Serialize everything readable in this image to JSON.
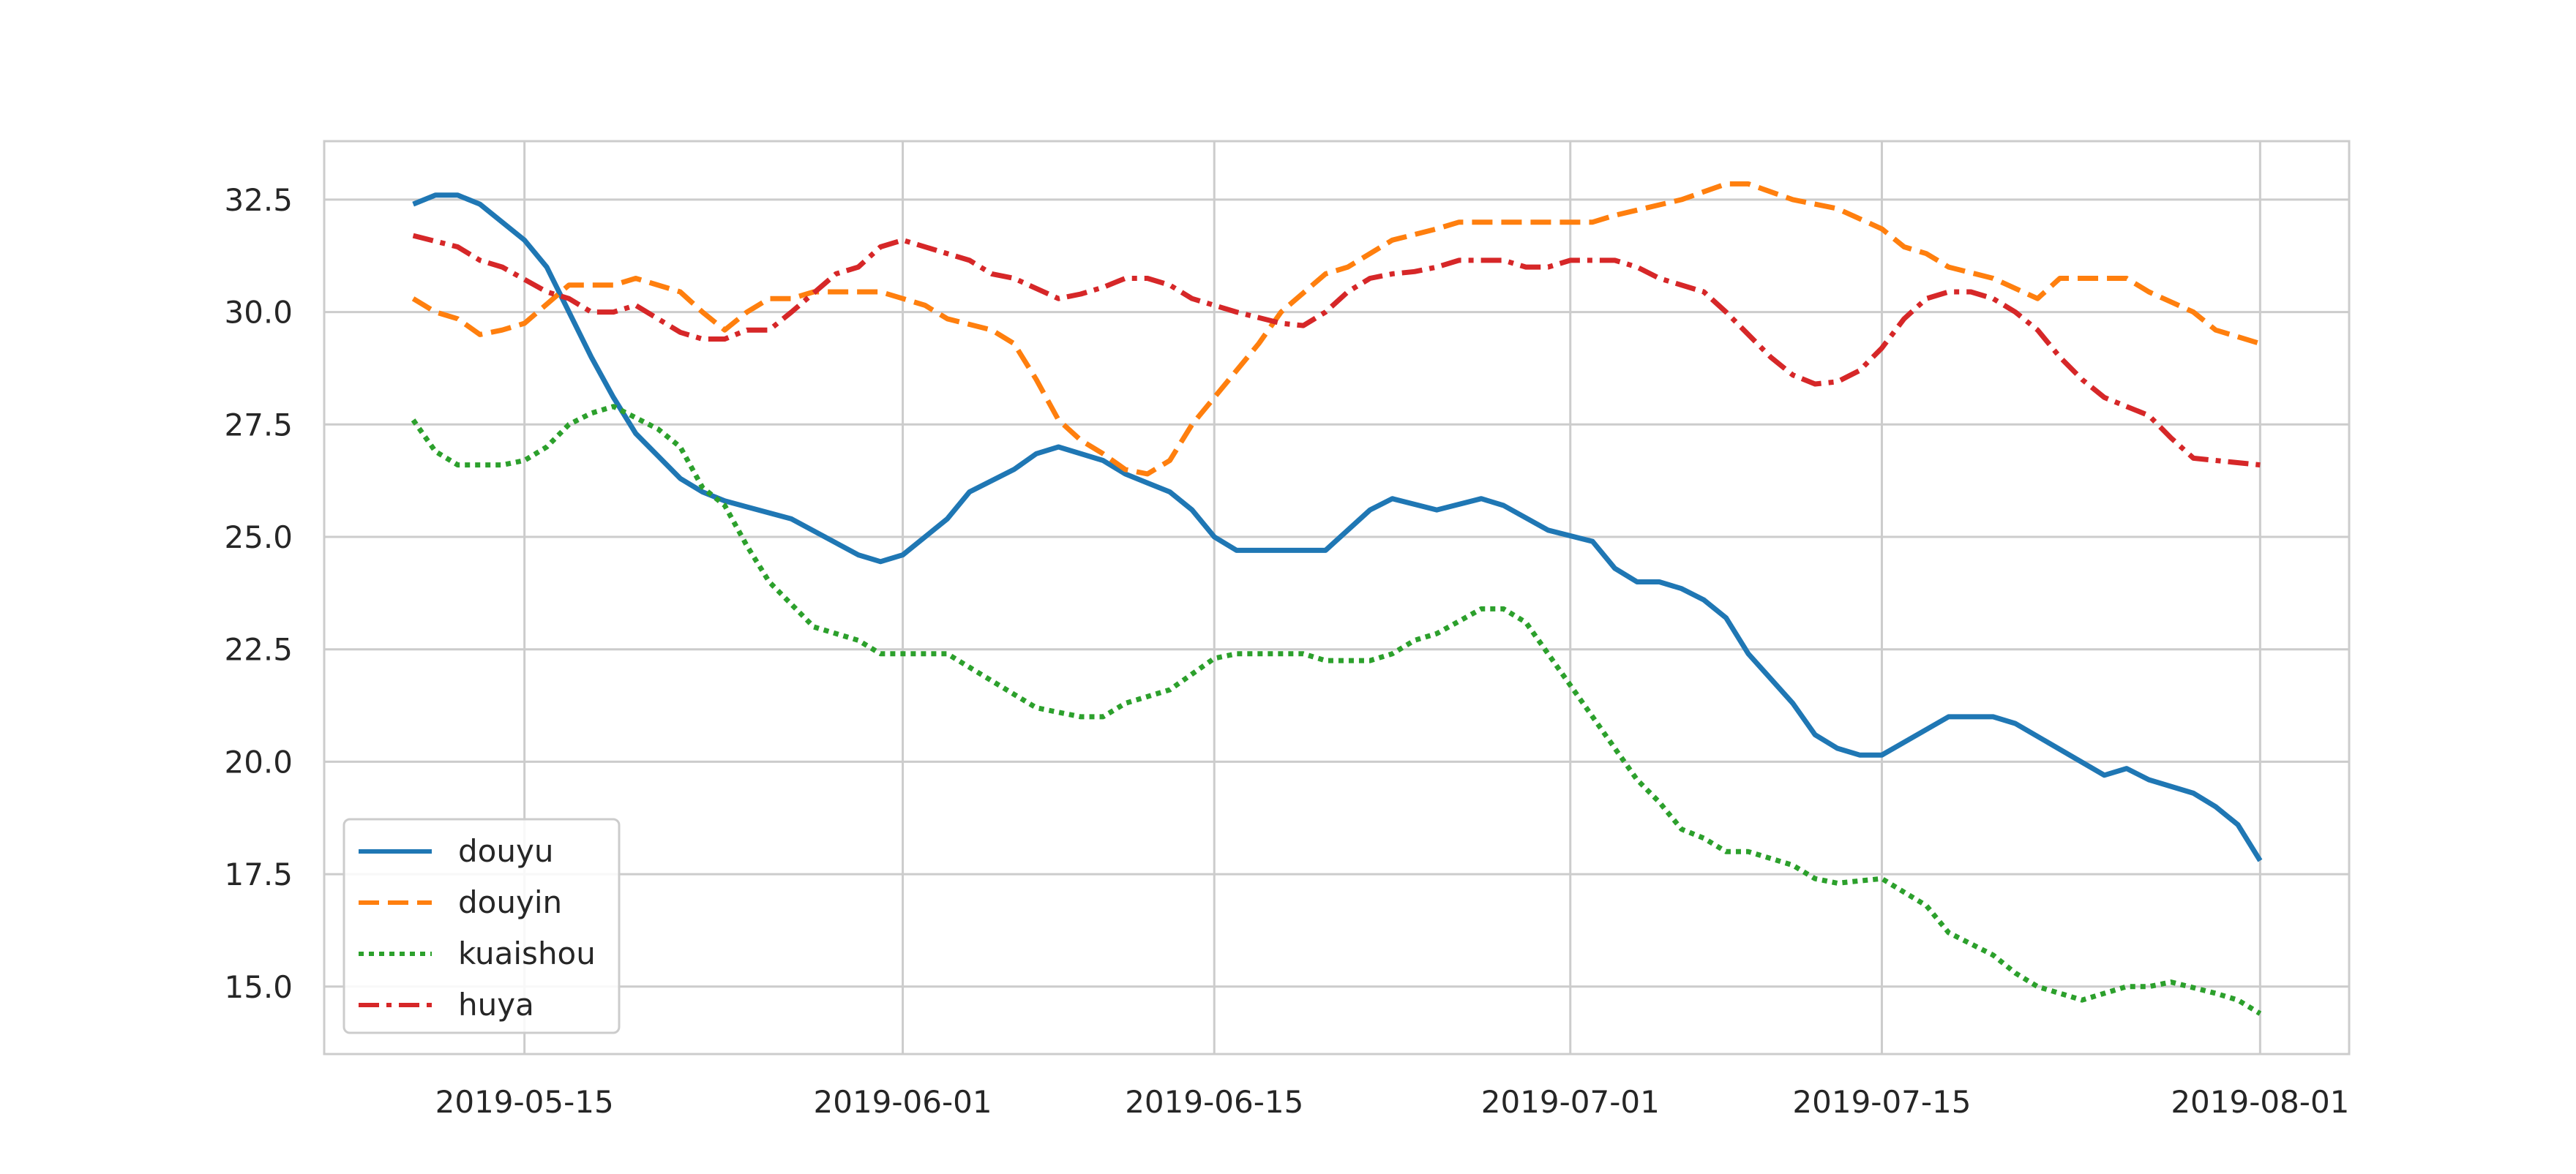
{
  "chart_data": {
    "type": "line",
    "title": "",
    "xlabel": "",
    "ylabel": "",
    "x_axis": {
      "type": "date",
      "range": [
        "2019-05-06",
        "2019-08-05"
      ],
      "ticks": [
        "2019-05-15",
        "2019-06-01",
        "2019-06-15",
        "2019-07-01",
        "2019-07-15",
        "2019-08-01"
      ]
    },
    "y_axis": {
      "range": [
        13.5,
        33.8
      ],
      "ticks": [
        "15.0",
        "17.5",
        "20.0",
        "22.5",
        "25.0",
        "27.5",
        "30.0",
        "32.5"
      ]
    },
    "grid": true,
    "legend": {
      "placement": "lower-left"
    },
    "series": [
      {
        "name": "douyu",
        "color": "#1f77b4",
        "style": "solid",
        "points": [
          [
            "2019-05-10",
            32.4
          ],
          [
            "2019-05-11",
            32.6
          ],
          [
            "2019-05-12",
            32.6
          ],
          [
            "2019-05-13",
            32.4
          ],
          [
            "2019-05-15",
            31.6
          ],
          [
            "2019-05-16",
            31.0
          ],
          [
            "2019-05-17",
            30.0
          ],
          [
            "2019-05-18",
            29.0
          ],
          [
            "2019-05-19",
            28.1
          ],
          [
            "2019-05-20",
            27.3
          ],
          [
            "2019-05-21",
            26.8
          ],
          [
            "2019-05-22",
            26.3
          ],
          [
            "2019-05-23",
            26.0
          ],
          [
            "2019-05-24",
            25.8
          ],
          [
            "2019-05-27",
            25.4
          ],
          [
            "2019-05-30",
            24.6
          ],
          [
            "2019-05-31",
            24.45
          ],
          [
            "2019-06-01",
            24.6
          ],
          [
            "2019-06-03",
            25.4
          ],
          [
            "2019-06-04",
            26.0
          ],
          [
            "2019-06-06",
            26.5
          ],
          [
            "2019-06-07",
            26.85
          ],
          [
            "2019-06-08",
            27.0
          ],
          [
            "2019-06-10",
            26.7
          ],
          [
            "2019-06-11",
            26.4
          ],
          [
            "2019-06-12",
            26.2
          ],
          [
            "2019-06-13",
            26.0
          ],
          [
            "2019-06-14",
            25.6
          ],
          [
            "2019-06-15",
            25.0
          ],
          [
            "2019-06-16",
            24.7
          ],
          [
            "2019-06-20",
            24.7
          ],
          [
            "2019-06-22",
            25.6
          ],
          [
            "2019-06-23",
            25.85
          ],
          [
            "2019-06-25",
            25.6
          ],
          [
            "2019-06-27",
            25.85
          ],
          [
            "2019-06-28",
            25.7
          ],
          [
            "2019-06-30",
            25.15
          ],
          [
            "2019-07-02",
            24.9
          ],
          [
            "2019-07-03",
            24.3
          ],
          [
            "2019-07-04",
            24.0
          ],
          [
            "2019-07-05",
            24.0
          ],
          [
            "2019-07-06",
            23.85
          ],
          [
            "2019-07-07",
            23.6
          ],
          [
            "2019-07-08",
            23.2
          ],
          [
            "2019-07-09",
            22.4
          ],
          [
            "2019-07-11",
            21.3
          ],
          [
            "2019-07-12",
            20.6
          ],
          [
            "2019-07-13",
            20.3
          ],
          [
            "2019-07-14",
            20.15
          ],
          [
            "2019-07-15",
            20.15
          ],
          [
            "2019-07-18",
            21.0
          ],
          [
            "2019-07-20",
            21.0
          ],
          [
            "2019-07-21",
            20.85
          ],
          [
            "2019-07-25",
            19.7
          ],
          [
            "2019-07-26",
            19.85
          ],
          [
            "2019-07-27",
            19.6
          ],
          [
            "2019-07-29",
            19.3
          ],
          [
            "2019-07-30",
            19.0
          ],
          [
            "2019-07-31",
            18.6
          ],
          [
            "2019-08-01",
            17.8
          ]
        ]
      },
      {
        "name": "douyin",
        "color": "#ff7f0e",
        "style": "dashed",
        "points": [
          [
            "2019-05-10",
            30.3
          ],
          [
            "2019-05-11",
            30.0
          ],
          [
            "2019-05-12",
            29.85
          ],
          [
            "2019-05-13",
            29.5
          ],
          [
            "2019-05-14",
            29.6
          ],
          [
            "2019-05-15",
            29.75
          ],
          [
            "2019-05-17",
            30.6
          ],
          [
            "2019-05-19",
            30.6
          ],
          [
            "2019-05-20",
            30.75
          ],
          [
            "2019-05-22",
            30.45
          ],
          [
            "2019-05-23",
            30.0
          ],
          [
            "2019-05-24",
            29.6
          ],
          [
            "2019-05-25",
            30.0
          ],
          [
            "2019-05-26",
            30.3
          ],
          [
            "2019-05-27",
            30.3
          ],
          [
            "2019-05-28",
            30.45
          ],
          [
            "2019-05-31",
            30.45
          ],
          [
            "2019-06-01",
            30.3
          ],
          [
            "2019-06-02",
            30.15
          ],
          [
            "2019-06-03",
            29.85
          ],
          [
            "2019-06-05",
            29.6
          ],
          [
            "2019-06-06",
            29.3
          ],
          [
            "2019-06-07",
            28.5
          ],
          [
            "2019-06-08",
            27.6
          ],
          [
            "2019-06-09",
            27.15
          ],
          [
            "2019-06-10",
            26.85
          ],
          [
            "2019-06-11",
            26.5
          ],
          [
            "2019-06-12",
            26.4
          ],
          [
            "2019-06-13",
            26.7
          ],
          [
            "2019-06-14",
            27.5
          ],
          [
            "2019-06-16",
            28.7
          ],
          [
            "2019-06-17",
            29.3
          ],
          [
            "2019-06-18",
            30.0
          ],
          [
            "2019-06-20",
            30.85
          ],
          [
            "2019-06-21",
            31.0
          ],
          [
            "2019-06-23",
            31.6
          ],
          [
            "2019-06-25",
            31.85
          ],
          [
            "2019-06-26",
            32.0
          ],
          [
            "2019-07-02",
            32.0
          ],
          [
            "2019-07-03",
            32.15
          ],
          [
            "2019-07-06",
            32.5
          ],
          [
            "2019-07-08",
            32.85
          ],
          [
            "2019-07-09",
            32.85
          ],
          [
            "2019-07-11",
            32.5
          ],
          [
            "2019-07-13",
            32.3
          ],
          [
            "2019-07-15",
            31.85
          ],
          [
            "2019-07-16",
            31.45
          ],
          [
            "2019-07-17",
            31.3
          ],
          [
            "2019-07-18",
            31.0
          ],
          [
            "2019-07-20",
            30.75
          ],
          [
            "2019-07-22",
            30.3
          ],
          [
            "2019-07-23",
            30.75
          ],
          [
            "2019-07-26",
            30.75
          ],
          [
            "2019-07-27",
            30.45
          ],
          [
            "2019-07-29",
            30.0
          ],
          [
            "2019-07-30",
            29.6
          ],
          [
            "2019-08-01",
            29.3
          ]
        ]
      },
      {
        "name": "kuaishou",
        "color": "#2ca02c",
        "style": "dotted",
        "points": [
          [
            "2019-05-10",
            27.6
          ],
          [
            "2019-05-11",
            26.9
          ],
          [
            "2019-05-12",
            26.6
          ],
          [
            "2019-05-14",
            26.6
          ],
          [
            "2019-05-15",
            26.7
          ],
          [
            "2019-05-16",
            27.0
          ],
          [
            "2019-05-17",
            27.5
          ],
          [
            "2019-05-18",
            27.75
          ],
          [
            "2019-05-19",
            27.9
          ],
          [
            "2019-05-21",
            27.4
          ],
          [
            "2019-05-22",
            27.0
          ],
          [
            "2019-05-23",
            26.1
          ],
          [
            "2019-05-24",
            25.7
          ],
          [
            "2019-05-25",
            24.8
          ],
          [
            "2019-05-26",
            24.0
          ],
          [
            "2019-05-27",
            23.5
          ],
          [
            "2019-05-28",
            23.0
          ],
          [
            "2019-05-30",
            22.7
          ],
          [
            "2019-05-31",
            22.4
          ],
          [
            "2019-06-03",
            22.4
          ],
          [
            "2019-06-04",
            22.1
          ],
          [
            "2019-06-06",
            21.5
          ],
          [
            "2019-06-07",
            21.2
          ],
          [
            "2019-06-09",
            21.0
          ],
          [
            "2019-06-10",
            21.0
          ],
          [
            "2019-06-11",
            21.3
          ],
          [
            "2019-06-13",
            21.6
          ],
          [
            "2019-06-15",
            22.3
          ],
          [
            "2019-06-16",
            22.4
          ],
          [
            "2019-06-19",
            22.4
          ],
          [
            "2019-06-20",
            22.25
          ],
          [
            "2019-06-22",
            22.25
          ],
          [
            "2019-06-23",
            22.4
          ],
          [
            "2019-06-24",
            22.7
          ],
          [
            "2019-06-25",
            22.85
          ],
          [
            "2019-06-27",
            23.4
          ],
          [
            "2019-06-28",
            23.4
          ],
          [
            "2019-06-29",
            23.1
          ],
          [
            "2019-06-30",
            22.4
          ],
          [
            "2019-07-02",
            21.0
          ],
          [
            "2019-07-03",
            20.3
          ],
          [
            "2019-07-04",
            19.6
          ],
          [
            "2019-07-05",
            19.1
          ],
          [
            "2019-07-06",
            18.5
          ],
          [
            "2019-07-07",
            18.3
          ],
          [
            "2019-07-08",
            18.0
          ],
          [
            "2019-07-09",
            18.0
          ],
          [
            "2019-07-11",
            17.7
          ],
          [
            "2019-07-12",
            17.4
          ],
          [
            "2019-07-13",
            17.3
          ],
          [
            "2019-07-15",
            17.4
          ],
          [
            "2019-07-16",
            17.1
          ],
          [
            "2019-07-17",
            16.8
          ],
          [
            "2019-07-18",
            16.2
          ],
          [
            "2019-07-20",
            15.7
          ],
          [
            "2019-07-21",
            15.3
          ],
          [
            "2019-07-22",
            15.0
          ],
          [
            "2019-07-24",
            14.7
          ],
          [
            "2019-07-26",
            15.0
          ],
          [
            "2019-07-27",
            15.0
          ],
          [
            "2019-07-28",
            15.1
          ],
          [
            "2019-07-30",
            14.85
          ],
          [
            "2019-07-31",
            14.7
          ],
          [
            "2019-08-01",
            14.4
          ]
        ]
      },
      {
        "name": "huya",
        "color": "#d62728",
        "style": "dashdot",
        "points": [
          [
            "2019-05-10",
            31.7
          ],
          [
            "2019-05-12",
            31.45
          ],
          [
            "2019-05-13",
            31.15
          ],
          [
            "2019-05-14",
            31.0
          ],
          [
            "2019-05-16",
            30.45
          ],
          [
            "2019-05-17",
            30.3
          ],
          [
            "2019-05-18",
            30.0
          ],
          [
            "2019-05-19",
            30.0
          ],
          [
            "2019-05-20",
            30.15
          ],
          [
            "2019-05-21",
            29.85
          ],
          [
            "2019-05-22",
            29.55
          ],
          [
            "2019-05-23",
            29.4
          ],
          [
            "2019-05-24",
            29.4
          ],
          [
            "2019-05-25",
            29.6
          ],
          [
            "2019-05-26",
            29.6
          ],
          [
            "2019-05-27",
            30.0
          ],
          [
            "2019-05-29",
            30.85
          ],
          [
            "2019-05-30",
            31.0
          ],
          [
            "2019-05-31",
            31.45
          ],
          [
            "2019-06-01",
            31.6
          ],
          [
            "2019-06-03",
            31.3
          ],
          [
            "2019-06-04",
            31.15
          ],
          [
            "2019-06-05",
            30.85
          ],
          [
            "2019-06-06",
            30.75
          ],
          [
            "2019-06-08",
            30.3
          ],
          [
            "2019-06-09",
            30.4
          ],
          [
            "2019-06-10",
            30.55
          ],
          [
            "2019-06-11",
            30.75
          ],
          [
            "2019-06-12",
            30.75
          ],
          [
            "2019-06-13",
            30.6
          ],
          [
            "2019-06-14",
            30.3
          ],
          [
            "2019-06-16",
            30.0
          ],
          [
            "2019-06-18",
            29.75
          ],
          [
            "2019-06-19",
            29.7
          ],
          [
            "2019-06-20",
            30.0
          ],
          [
            "2019-06-21",
            30.45
          ],
          [
            "2019-06-22",
            30.75
          ],
          [
            "2019-06-23",
            30.85
          ],
          [
            "2019-06-24",
            30.9
          ],
          [
            "2019-06-25",
            31.0
          ],
          [
            "2019-06-26",
            31.15
          ],
          [
            "2019-06-28",
            31.15
          ],
          [
            "2019-06-29",
            31.0
          ],
          [
            "2019-06-30",
            31.0
          ],
          [
            "2019-07-01",
            31.15
          ],
          [
            "2019-07-03",
            31.15
          ],
          [
            "2019-07-04",
            31.0
          ],
          [
            "2019-07-05",
            30.75
          ],
          [
            "2019-07-07",
            30.45
          ],
          [
            "2019-07-08",
            30.0
          ],
          [
            "2019-07-10",
            29.0
          ],
          [
            "2019-07-11",
            28.6
          ],
          [
            "2019-07-12",
            28.4
          ],
          [
            "2019-07-13",
            28.45
          ],
          [
            "2019-07-14",
            28.7
          ],
          [
            "2019-07-15",
            29.2
          ],
          [
            "2019-07-16",
            29.85
          ],
          [
            "2019-07-17",
            30.3
          ],
          [
            "2019-07-18",
            30.45
          ],
          [
            "2019-07-19",
            30.45
          ],
          [
            "2019-07-20",
            30.3
          ],
          [
            "2019-07-21",
            30.0
          ],
          [
            "2019-07-22",
            29.6
          ],
          [
            "2019-07-23",
            29.0
          ],
          [
            "2019-07-24",
            28.5
          ],
          [
            "2019-07-25",
            28.1
          ],
          [
            "2019-07-26",
            27.9
          ],
          [
            "2019-07-27",
            27.7
          ],
          [
            "2019-07-28",
            27.2
          ],
          [
            "2019-07-29",
            26.75
          ],
          [
            "2019-07-30",
            26.7
          ],
          [
            "2019-08-01",
            26.6
          ]
        ]
      }
    ]
  }
}
